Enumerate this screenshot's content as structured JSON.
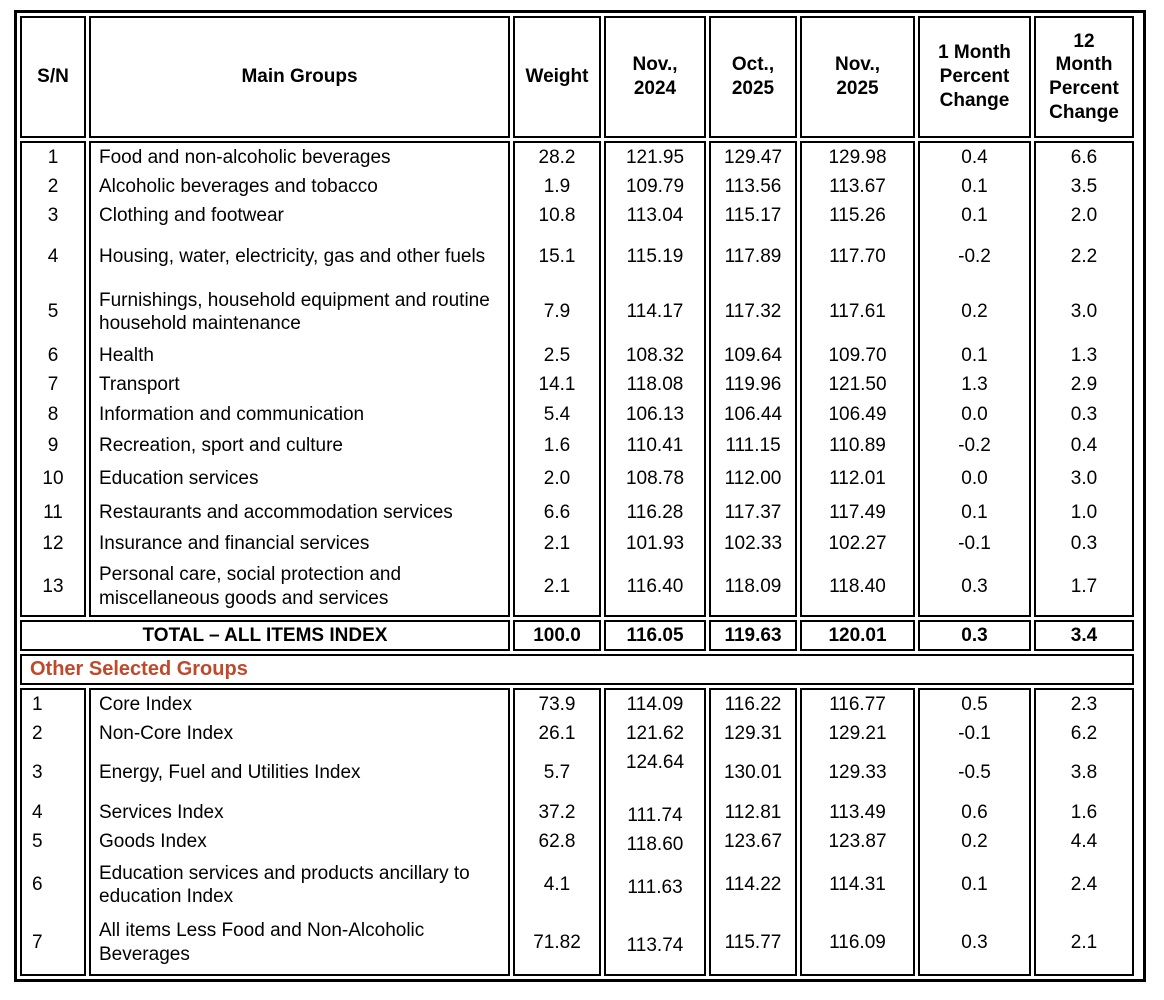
{
  "table": {
    "columns": [
      "S/N",
      "Main Groups",
      "Weight",
      "Nov.,\n2024",
      "Oct.,\n2025",
      "Nov.,\n2025",
      "1 Month\nPercent\nChange",
      "12\nMonth\nPercent\nChange"
    ],
    "main_groups": {
      "rows": [
        {
          "sn": "1",
          "name": "Food and non-alcoholic beverages",
          "weight": "28.2",
          "nov2024": "121.95",
          "oct2025": "129.47",
          "nov2025": "129.98",
          "change1m": "0.4",
          "change12m": "6.6"
        },
        {
          "sn": "2",
          "name": "Alcoholic beverages and tobacco",
          "weight": "1.9",
          "nov2024": "109.79",
          "oct2025": "113.56",
          "nov2025": "113.67",
          "change1m": "0.1",
          "change12m": "3.5"
        },
        {
          "sn": "3",
          "name": "Clothing and footwear",
          "weight": "10.8",
          "nov2024": "113.04",
          "oct2025": "115.17",
          "nov2025": "115.26",
          "change1m": "0.1",
          "change12m": "2.0"
        },
        {
          "sn": "4",
          "name": "Housing, water, electricity, gas and other fuels",
          "weight": "15.1",
          "nov2024": "115.19",
          "oct2025": "117.89",
          "nov2025": "117.70",
          "change1m": "-0.2",
          "change12m": "2.2"
        },
        {
          "sn": "5",
          "name": "Furnishings, household equipment and routine household maintenance",
          "weight": "7.9",
          "nov2024": "114.17",
          "oct2025": "117.32",
          "nov2025": "117.61",
          "change1m": "0.2",
          "change12m": "3.0"
        },
        {
          "sn": "6",
          "name": "Health",
          "weight": "2.5",
          "nov2024": "108.32",
          "oct2025": "109.64",
          "nov2025": "109.70",
          "change1m": "0.1",
          "change12m": "1.3"
        },
        {
          "sn": "7",
          "name": "Transport",
          "weight": "14.1",
          "nov2024": "118.08",
          "oct2025": "119.96",
          "nov2025": "121.50",
          "change1m": "1.3",
          "change12m": "2.9"
        },
        {
          "sn": "8",
          "name": "Information and communication",
          "weight": "5.4",
          "nov2024": "106.13",
          "oct2025": "106.44",
          "nov2025": "106.49",
          "change1m": "0.0",
          "change12m": "0.3"
        },
        {
          "sn": "9",
          "name": "Recreation, sport and culture",
          "weight": "1.6",
          "nov2024": "110.41",
          "oct2025": "111.15",
          "nov2025": "110.89",
          "change1m": "-0.2",
          "change12m": "0.4"
        },
        {
          "sn": "10",
          "name": "Education services",
          "weight": "2.0",
          "nov2024": "108.78",
          "oct2025": "112.00",
          "nov2025": "112.01",
          "change1m": "0.0",
          "change12m": "3.0"
        },
        {
          "sn": "11",
          "name": "Restaurants and accommodation services",
          "weight": "6.6",
          "nov2024": "116.28",
          "oct2025": "117.37",
          "nov2025": "117.49",
          "change1m": "0.1",
          "change12m": "1.0"
        },
        {
          "sn": "12",
          "name": "Insurance and financial services",
          "weight": "2.1",
          "nov2024": "101.93",
          "oct2025": "102.33",
          "nov2025": "102.27",
          "change1m": "-0.1",
          "change12m": "0.3"
        },
        {
          "sn": "13",
          "name": "Personal care, social protection and miscellaneous goods and services",
          "weight": "2.1",
          "nov2024": "116.40",
          "oct2025": "118.09",
          "nov2025": "118.40",
          "change1m": "0.3",
          "change12m": "1.7"
        }
      ],
      "total": {
        "label": "TOTAL – ALL ITEMS INDEX",
        "weight": "100.0",
        "nov2024": "116.05",
        "oct2025": "119.63",
        "nov2025": "120.01",
        "change1m": "0.3",
        "change12m": "3.4"
      }
    },
    "other_selected_groups": {
      "title": "Other Selected Groups",
      "title_color": "#C0492B",
      "rows": [
        {
          "sn": "1",
          "name": "Core Index",
          "weight": "73.9",
          "nov2024": "114.09",
          "oct2025": "116.22",
          "nov2025": "116.77",
          "change1m": "0.5",
          "change12m": "2.3"
        },
        {
          "sn": "2",
          "name": "Non-Core Index",
          "weight": "26.1",
          "nov2024": "121.62",
          "oct2025": "129.31",
          "nov2025": "129.21",
          "change1m": "-0.1",
          "change12m": "6.2"
        },
        {
          "sn": "3",
          "name": "Energy, Fuel and Utilities Index",
          "weight": "5.7",
          "nov2024": "124.64",
          "oct2025": "130.01",
          "nov2025": "129.33",
          "change1m": "-0.5",
          "change12m": "3.8"
        },
        {
          "sn": "4",
          "name": "Services Index",
          "weight": "37.2",
          "nov2024": "111.74",
          "oct2025": "112.81",
          "nov2025": "113.49",
          "change1m": "0.6",
          "change12m": "1.6"
        },
        {
          "sn": "5",
          "name": "Goods Index",
          "weight": "62.8",
          "nov2024": "118.60",
          "oct2025": "123.67",
          "nov2025": "123.87",
          "change1m": "0.2",
          "change12m": "4.4"
        },
        {
          "sn": "6",
          "name": "Education services and products ancillary to education Index",
          "weight": "4.1",
          "nov2024": "111.63",
          "oct2025": "114.22",
          "nov2025": "114.31",
          "change1m": "0.1",
          "change12m": "2.4"
        },
        {
          "sn": "7",
          "name": "All items Less Food and Non-Alcoholic Beverages",
          "weight": "71.82",
          "nov2024": "113.74",
          "oct2025": "115.77",
          "nov2025": "116.09",
          "change1m": "0.3",
          "change12m": "2.1"
        }
      ]
    }
  }
}
